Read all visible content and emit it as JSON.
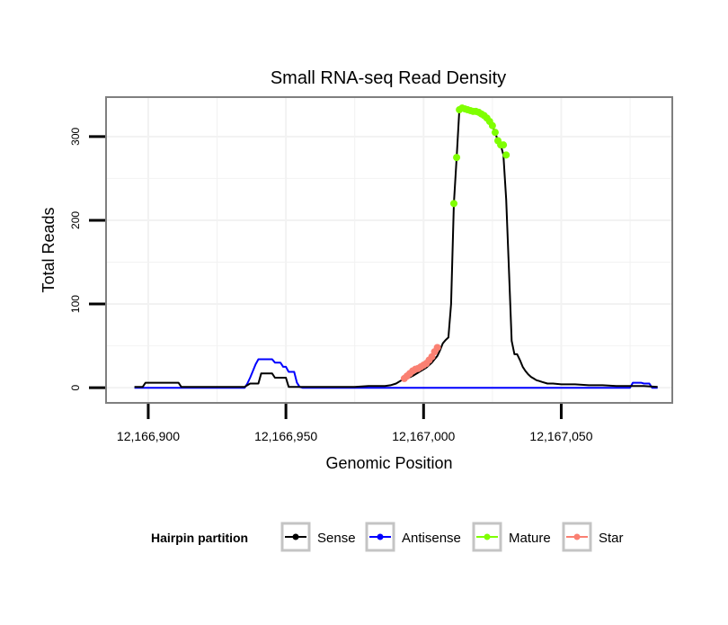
{
  "chart_data": {
    "type": "line",
    "title": "Small RNA-seq Read Density",
    "xlabel": "Genomic Position",
    "ylabel": "Total Reads",
    "xlim": [
      12166885,
      12167090
    ],
    "ylim": [
      -17,
      346
    ],
    "x_ticks": [
      12166900,
      12166950,
      12167000,
      12167050
    ],
    "x_tick_labels": [
      "12,166,900",
      "12,166,950",
      "12,167,000",
      "12,167,050"
    ],
    "y_ticks": [
      0,
      100,
      200,
      300
    ],
    "y_tick_labels": [
      "0",
      "100",
      "200",
      "300"
    ],
    "grid": true,
    "legend": {
      "title": "Hairpin partition",
      "position": "bottom",
      "entries": [
        {
          "label": "Sense",
          "color": "#000000"
        },
        {
          "label": "Antisense",
          "color": "#0000ff"
        },
        {
          "label": "Mature",
          "color": "#7fff00"
        },
        {
          "label": "Star",
          "color": "#fa8072"
        }
      ]
    },
    "series": [
      {
        "name": "Sense",
        "color": "#000000",
        "style": "line",
        "x": [
          12166895,
          12166898,
          12166899,
          12166911,
          12166912,
          12166935,
          12166937,
          12166940,
          12166941,
          12166945,
          12166946,
          12166950,
          12166951,
          12166955,
          12166956,
          12166960,
          12166965,
          12166970,
          12166975,
          12166980,
          12166983,
          12166986,
          12166988,
          12166990,
          12166992,
          12166994,
          12166996,
          12166997,
          12166998,
          12166999,
          12167000,
          12167001,
          12167002,
          12167003,
          12167004,
          12167005,
          12167006,
          12167007,
          12167008,
          12167009,
          12167010,
          12167011,
          12167012,
          12167013,
          12167014,
          12167015,
          12167016,
          12167017,
          12167018,
          12167019,
          12167020,
          12167021,
          12167022,
          12167023,
          12167024,
          12167025,
          12167026,
          12167027,
          12167028,
          12167029,
          12167030,
          12167031,
          12167032,
          12167033,
          12167034,
          12167035,
          12167036,
          12167037,
          12167038,
          12167039,
          12167040,
          12167041,
          12167042,
          12167043,
          12167045,
          12167047,
          12167050,
          12167055,
          12167060,
          12167065,
          12167070,
          12167075,
          12167080,
          12167085
        ],
        "y": [
          1,
          1,
          6,
          6,
          1,
          1,
          5,
          5,
          17,
          17,
          12,
          12,
          1,
          1,
          1,
          1,
          1,
          1,
          1,
          2,
          2,
          2,
          3,
          5,
          9,
          11,
          14,
          16,
          18,
          20,
          22,
          24,
          27,
          30,
          34,
          38,
          45,
          53,
          57,
          60,
          100,
          220,
          275,
          332,
          334,
          333,
          332,
          331,
          330,
          330,
          329,
          327,
          325,
          322,
          318,
          313,
          305,
          295,
          290,
          278,
          225,
          140,
          56,
          40,
          40,
          33,
          25,
          20,
          16,
          13,
          11,
          9,
          8,
          7,
          5,
          5,
          4,
          4,
          3,
          3,
          2,
          2,
          2,
          1
        ]
      },
      {
        "name": "Antisense",
        "color": "#0000ff",
        "style": "line",
        "x": [
          12166895,
          12166935,
          12166936,
          12166937,
          12166938,
          12166939,
          12166940,
          12166945,
          12166946,
          12166948,
          12166949,
          12166950,
          12166951,
          12166953,
          12166954,
          12166955,
          12166956,
          12166960,
          12167000,
          12167050,
          12167075,
          12167076,
          12167079,
          12167080,
          12167082,
          12167083,
          12167085
        ],
        "y": [
          0,
          0,
          5,
          12,
          20,
          28,
          34,
          34,
          30,
          30,
          25,
          25,
          19,
          19,
          6,
          1,
          0,
          0,
          0,
          0,
          0,
          6,
          6,
          5,
          5,
          0,
          0
        ]
      },
      {
        "name": "Mature",
        "color": "#7fff00",
        "style": "points",
        "x": [
          12167011,
          12167012,
          12167013,
          12167014,
          12167015,
          12167016,
          12167017,
          12167018,
          12167019,
          12167020,
          12167021,
          12167022,
          12167023,
          12167024,
          12167025,
          12167026,
          12167027,
          12167028,
          12167029,
          12167030
        ],
        "y": [
          220,
          275,
          332,
          334,
          333,
          332,
          331,
          330,
          330,
          329,
          327,
          325,
          322,
          318,
          313,
          305,
          295,
          290,
          290,
          278
        ]
      },
      {
        "name": "Star",
        "color": "#fa8072",
        "style": "points",
        "x": [
          12166993,
          12166994,
          12166995,
          12166996,
          12166997,
          12166998,
          12166999,
          12167000,
          12167001,
          12167002,
          12167003,
          12167004,
          12167005
        ],
        "y": [
          11,
          14,
          17,
          20,
          22,
          23,
          25,
          27,
          29,
          33,
          37,
          43,
          48
        ]
      }
    ]
  }
}
